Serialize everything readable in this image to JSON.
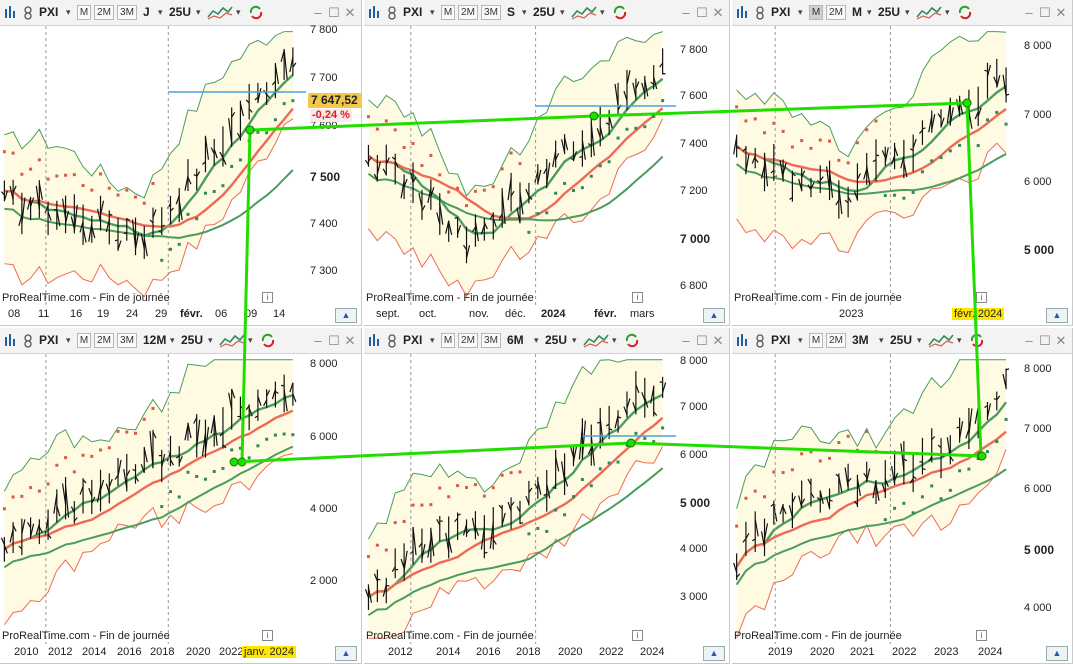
{
  "colors": {
    "toolbar_bg": "#f3f3f3",
    "bollinger": "#ef6a55",
    "ma_green": "#4a9d5c",
    "band_fill": "#fffbe3",
    "sar": "#d95a48",
    "sar_up": "#2d8a5a",
    "hline": "#4aa3e0",
    "trend": "#22dd00",
    "last_price_bg": "#f2c94c"
  },
  "panels": [
    {
      "symbol": "PXI",
      "periods": [
        "M",
        "2M",
        "3M"
      ],
      "active_period": "",
      "timeframe": "J",
      "bars": "25U",
      "yaxis": [
        "7 800",
        "7 700",
        "7 600",
        "7 500",
        "7 400",
        "7 300"
      ],
      "xaxis": [
        "08",
        "11",
        "16",
        "19",
        "24",
        "29",
        "févr.",
        "06",
        "09",
        "14"
      ],
      "highlight": "",
      "last_price": "7 647,52",
      "change": "-0,24 %",
      "brand": "ProRealTime.com - Fin de journée",
      "up_label": "▲"
    },
    {
      "symbol": "PXI",
      "periods": [
        "M",
        "2M",
        "3M"
      ],
      "active_period": "",
      "timeframe": "S",
      "bars": "25U",
      "yaxis": [
        "7 800",
        "7 600",
        "7 400",
        "7 200",
        "7 000",
        "6 800"
      ],
      "xaxis": [
        "sept.",
        "oct.",
        "nov.",
        "déc.",
        "2024",
        "févr.",
        "mars"
      ],
      "highlight": "",
      "last_price": "",
      "change": "",
      "brand": "ProRealTime.com - Fin de journée",
      "up_label": "▲"
    },
    {
      "symbol": "PXI",
      "periods": [
        "M",
        "2M"
      ],
      "active_period": "M",
      "timeframe": "M",
      "bars": "25U",
      "yaxis": [
        "8 000",
        "7 000",
        "6 000",
        "5 000"
      ],
      "xaxis": [
        "2023"
      ],
      "highlight": "févr. 2024",
      "last_price": "",
      "change": "",
      "brand": "ProRealTime.com - Fin de journée",
      "up_label": "▲"
    },
    {
      "symbol": "PXI",
      "periods": [
        "M",
        "2M",
        "3M"
      ],
      "active_period": "",
      "timeframe": "12M",
      "bars": "25U",
      "yaxis": [
        "8 000",
        "6 000",
        "4 000",
        "2 000"
      ],
      "xaxis": [
        "2010",
        "2012",
        "2014",
        "2016",
        "2018",
        "2020",
        "2022"
      ],
      "highlight": "janv. 2024",
      "last_price": "",
      "change": "",
      "brand": "ProRealTime.com - Fin de journée",
      "up_label": "▲"
    },
    {
      "symbol": "PXI",
      "periods": [
        "M",
        "2M",
        "3M"
      ],
      "active_period": "",
      "timeframe": "6M",
      "bars": "25U",
      "yaxis": [
        "8 000",
        "7 000",
        "6 000",
        "5 000",
        "4 000",
        "3 000"
      ],
      "xaxis": [
        "2012",
        "2014",
        "2016",
        "2018",
        "2020",
        "2022",
        "2024"
      ],
      "highlight": "",
      "last_price": "",
      "change": "",
      "brand": "ProRealTime.com - Fin de journée",
      "up_label": "▲"
    },
    {
      "symbol": "PXI",
      "periods": [
        "M",
        "2M"
      ],
      "active_period": "",
      "timeframe": "3M",
      "bars": "25U",
      "yaxis": [
        "8 000",
        "7 000",
        "6 000",
        "5 000",
        "4 000"
      ],
      "xaxis": [
        "2019",
        "2020",
        "2021",
        "2022",
        "2023",
        "2024"
      ],
      "highlight": "",
      "last_price": "",
      "change": "",
      "brand": "ProRealTime.com - Fin de journée",
      "up_label": "▲"
    }
  ]
}
